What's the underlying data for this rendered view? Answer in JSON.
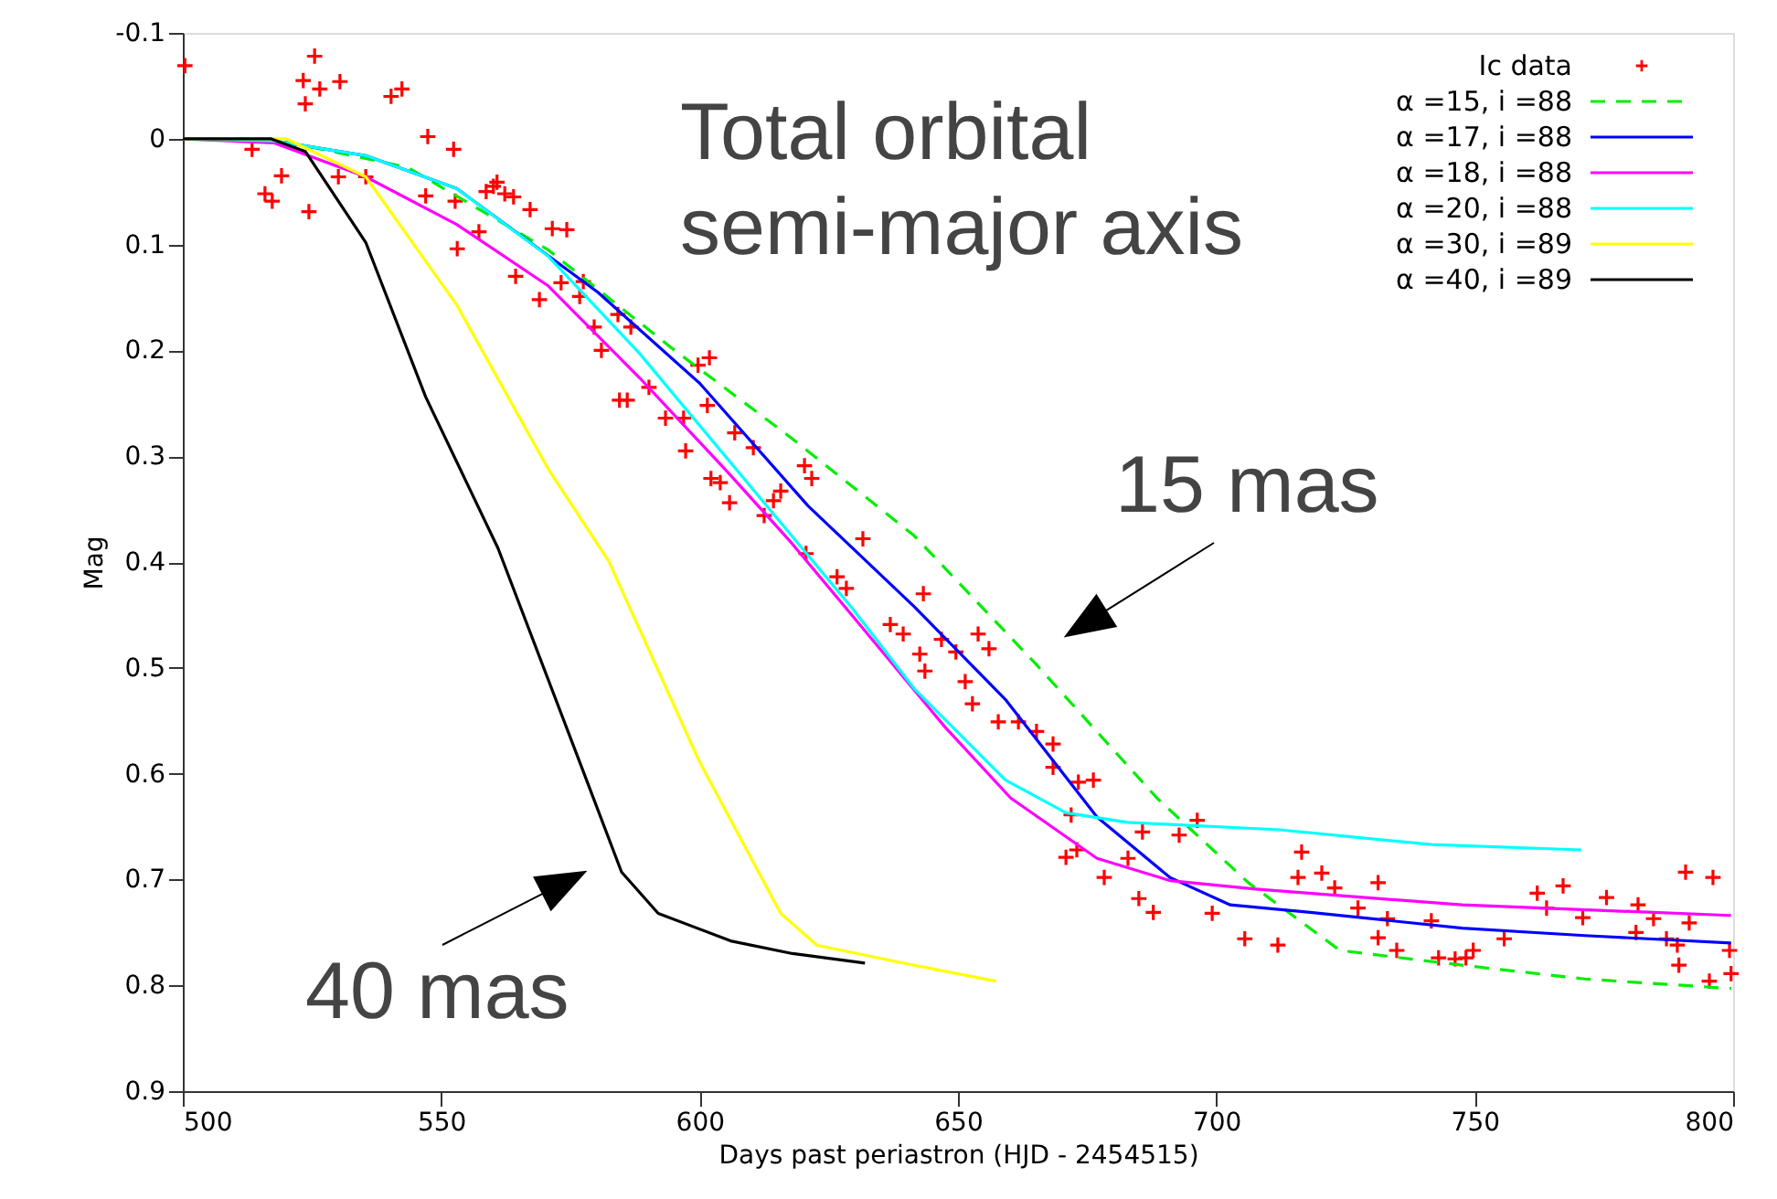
{
  "chart_data": {
    "type": "line",
    "xlabel": "Days past periastron (HJD - 2454515)",
    "ylabel": "Mag",
    "xlim": [
      500,
      800
    ],
    "xticks": [
      500,
      550,
      600,
      650,
      700,
      750,
      800
    ],
    "ylim": [
      0.9,
      -0.1
    ],
    "yticks": [
      -0.1,
      0,
      0.1,
      0.2,
      0.3,
      0.4,
      0.5,
      0.6,
      0.7,
      0.8,
      0.9
    ],
    "grid": false,
    "legend": "top right",
    "annotations": [
      "Total orbital\nsemi-major axis",
      "15 mas",
      "40 mas"
    ],
    "series": [
      {
        "name": "Ic data",
        "type": "scatter",
        "marker": "cross",
        "color": "#ff0000",
        "x": [
          500.4,
          513.4,
          515.9,
          517.3,
          519.1,
          523.3,
          525.5,
          523.7,
          526.5,
          530.4,
          524.4,
          530.1,
          540.3,
          542.4,
          535.4,
          547.4,
          547.0,
          552.4,
          552.7,
          558.7,
          560.1,
          560.8,
          562.3,
          564.0,
          567.2,
          571.5,
          574.3,
          553.1,
          557.3,
          564.4,
          569.0,
          573.2,
          577.5,
          576.8,
          579.6,
          581.0,
          584.2,
          586.7,
          584.5,
          586.0,
          590.2,
          593.4,
          596.9,
          597.3,
          599.7,
          601.9,
          601.5,
          602.2,
          604.0,
          605.8,
          606.8,
          610.4,
          612.5,
          614.3,
          615.7,
          620.3,
          620.6,
          621.7,
          626.6,
          628.4,
          631.6,
          636.9,
          639.4,
          642.6,
          643.6,
          643.3,
          646.8,
          649.6,
          651.4,
          653.9,
          656.0,
          652.8,
          657.8,
          661.7,
          665.2,
          668.4,
          668.4,
          673.3,
          671.9,
          676.2,
          670.9,
          673.0,
          678.3,
          682.9,
          685.0,
          687.8,
          685.7,
          692.8,
          696.3,
          699.2,
          705.5,
          711.9,
          715.8,
          716.5,
          720.4,
          722.9,
          727.4,
          731.3,
          731.3,
          733.1,
          734.9,
          741.6,
          743.0,
          746.2,
          748.3,
          749.7,
          755.7,
          762.1,
          763.9,
          767.1,
          770.9,
          775.5,
          781.6,
          781.2,
          784.6,
          787.1,
          789.2,
          789.5,
          791.5,
          790.8,
          796.1,
          795.4,
          799.3,
          799.6
        ],
        "values": [
          -0.069,
          0.01,
          0.052,
          0.059,
          0.035,
          -0.055,
          -0.078,
          -0.033,
          -0.047,
          -0.054,
          0.069,
          0.036,
          -0.04,
          -0.047,
          0.036,
          -0.002,
          0.054,
          0.01,
          0.059,
          0.05,
          0.045,
          0.041,
          0.052,
          0.055,
          0.067,
          0.085,
          0.086,
          0.104,
          0.088,
          0.13,
          0.152,
          0.136,
          0.135,
          0.149,
          0.178,
          0.2,
          0.166,
          0.178,
          0.247,
          0.247,
          0.235,
          0.264,
          0.264,
          0.295,
          0.214,
          0.207,
          0.252,
          0.321,
          0.325,
          0.344,
          0.278,
          0.292,
          0.356,
          0.342,
          0.333,
          0.309,
          0.392,
          0.321,
          0.414,
          0.425,
          0.378,
          0.459,
          0.468,
          0.487,
          0.503,
          0.43,
          0.473,
          0.485,
          0.513,
          0.468,
          0.482,
          0.534,
          0.551,
          0.551,
          0.56,
          0.572,
          0.594,
          0.608,
          0.639,
          0.606,
          0.679,
          0.672,
          0.698,
          0.68,
          0.718,
          0.731,
          0.655,
          0.658,
          0.644,
          0.732,
          0.756,
          0.762,
          0.698,
          0.674,
          0.694,
          0.708,
          0.727,
          0.703,
          0.755,
          0.737,
          0.767,
          0.739,
          0.774,
          0.775,
          0.774,
          0.767,
          0.756,
          0.713,
          0.727,
          0.706,
          0.736,
          0.717,
          0.724,
          0.75,
          0.737,
          0.756,
          0.762,
          0.781,
          0.741,
          0.693,
          0.698,
          0.796,
          0.767,
          0.789
        ]
      },
      {
        "name": "α =15, i =88",
        "color": "#00ee00",
        "line_style": "dashed",
        "x": [
          500,
          517,
          543.5,
          570.7,
          594.4,
          617.8,
          641.5,
          665,
          688.5,
          706.2,
          723.9,
          747.6,
          771.3,
          799.6
        ],
        "values": [
          0,
          0,
          0.027,
          0.105,
          0.197,
          0.283,
          0.375,
          0.496,
          0.623,
          0.703,
          0.767,
          0.781,
          0.794,
          0.803
        ]
      },
      {
        "name": "α =17, i =88",
        "color": "#0000ff",
        "line_style": "solid",
        "x": [
          500,
          517.7,
          535.4,
          553,
          580.3,
          600,
          621,
          641.5,
          659.2,
          676.9,
          691,
          702.7,
          718.2,
          747.6,
          771.3,
          799.6
        ],
        "values": [
          0,
          0.002,
          0.016,
          0.047,
          0.145,
          0.231,
          0.347,
          0.442,
          0.53,
          0.641,
          0.698,
          0.724,
          0.731,
          0.746,
          0.753,
          0.76
        ]
      },
      {
        "name": "α =18, i =88",
        "color": "#ff00ff",
        "line_style": "solid",
        "x": [
          500,
          517.7,
          535.4,
          553,
          570.7,
          588.4,
          606,
          617.8,
          629.6,
          647.5,
          660.2,
          676.9,
          691,
          707.6,
          747.6,
          799.6
        ],
        "values": [
          0,
          0.004,
          0.036,
          0.081,
          0.139,
          0.226,
          0.318,
          0.382,
          0.451,
          0.556,
          0.623,
          0.68,
          0.701,
          0.709,
          0.724,
          0.734
        ]
      },
      {
        "name": "α =20, i =88",
        "color": "#00ffff",
        "line_style": "solid",
        "x": [
          500,
          517.7,
          535.4,
          553,
          570.7,
          588.4,
          606,
          619,
          629.6,
          641.6,
          659.2,
          670.9,
          682.8,
          712.3,
          741.6,
          770.6
        ],
        "values": [
          0,
          0.002,
          0.016,
          0.047,
          0.111,
          0.203,
          0.306,
          0.382,
          0.444,
          0.52,
          0.606,
          0.637,
          0.646,
          0.653,
          0.667,
          0.672
        ]
      },
      {
        "name": "α =30, i =89",
        "color": "#ffff00",
        "line_style": "solid",
        "x": [
          500,
          520,
          535.4,
          553,
          570.7,
          582.4,
          600,
          615.7,
          622.7,
          641.5,
          657.4
        ],
        "values": [
          0,
          0,
          0.036,
          0.157,
          0.312,
          0.399,
          0.589,
          0.732,
          0.762,
          0.781,
          0.796
        ]
      },
      {
        "name": "α =40, i =89",
        "color": "#000000",
        "line_style": "solid",
        "x": [
          500,
          517,
          523.7,
          535.4,
          547,
          561,
          576.8,
          584.9,
          592,
          606,
          618,
          632
        ],
        "values": [
          0,
          0,
          0.012,
          0.098,
          0.244,
          0.387,
          0.589,
          0.693,
          0.732,
          0.758,
          0.77,
          0.779
        ]
      }
    ]
  }
}
